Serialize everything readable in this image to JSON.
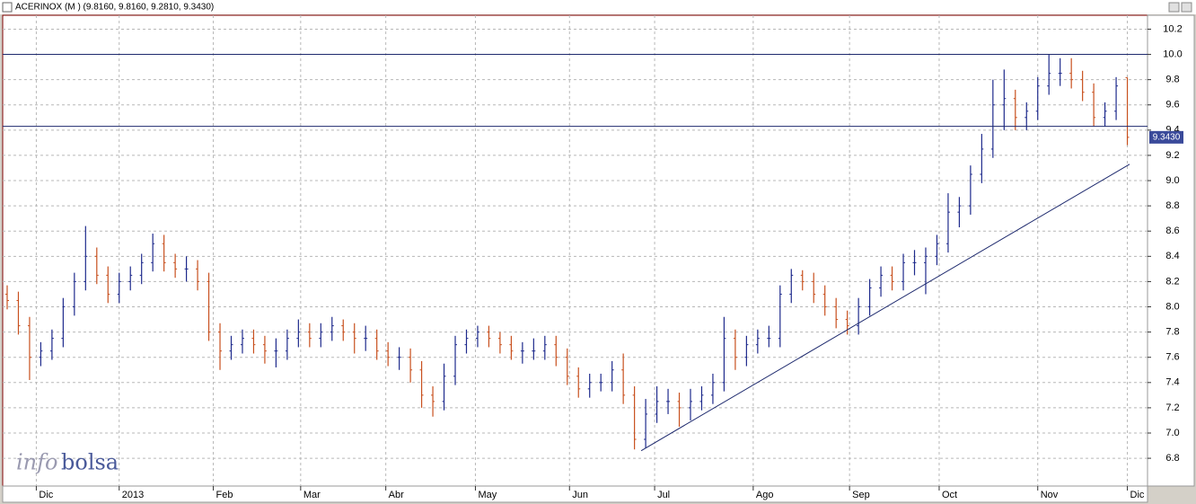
{
  "window": {
    "title": "ACERINOX (M ) (9.8160, 9.8160, 9.2810, 9.3430)"
  },
  "chart_data": {
    "type": "ohlc",
    "open": [
      8.1,
      8.05,
      7.85,
      7.6,
      7.65,
      7.75,
      8.0,
      8.2,
      8.4,
      8.25,
      8.1,
      8.2,
      8.25,
      8.35,
      8.5,
      8.35,
      8.3,
      8.3,
      8.2,
      7.8,
      7.65,
      7.7,
      7.75,
      7.7,
      7.65,
      7.65,
      7.75,
      7.8,
      7.75,
      7.8,
      7.85,
      7.8,
      7.75,
      7.75,
      7.65,
      7.6,
      7.6,
      7.5,
      7.3,
      7.25,
      7.45,
      7.7,
      7.75,
      7.8,
      7.75,
      7.7,
      7.65,
      7.65,
      7.65,
      7.7,
      7.6,
      7.45,
      7.35,
      7.4,
      7.4,
      7.5,
      7.3,
      6.95,
      7.15,
      7.25,
      7.25,
      7.2,
      7.25,
      7.3,
      7.4,
      7.75,
      7.6,
      7.7,
      7.75,
      7.75,
      8.1,
      8.25,
      8.2,
      8.1,
      8.0,
      7.9,
      7.85,
      8.0,
      8.15,
      8.25,
      8.2,
      8.35,
      8.35,
      8.4,
      8.5,
      8.75,
      8.8,
      9.05,
      9.25,
      9.6,
      9.65,
      9.5,
      9.55,
      9.75,
      9.85,
      9.85,
      9.8,
      9.7,
      9.5,
      9.55,
      9.816
    ],
    "high": [
      8.17,
      8.12,
      7.92,
      7.72,
      7.82,
      8.07,
      8.27,
      8.64,
      8.47,
      8.32,
      8.27,
      8.32,
      8.42,
      8.58,
      8.57,
      8.42,
      8.4,
      8.37,
      8.27,
      7.87,
      7.77,
      7.82,
      7.82,
      7.77,
      7.75,
      7.82,
      7.9,
      7.87,
      7.87,
      7.92,
      7.9,
      7.87,
      7.85,
      7.82,
      7.72,
      7.68,
      7.67,
      7.57,
      7.37,
      7.55,
      7.77,
      7.82,
      7.85,
      7.85,
      7.8,
      7.77,
      7.72,
      7.75,
      7.77,
      7.77,
      7.67,
      7.52,
      7.47,
      7.47,
      7.57,
      7.63,
      7.37,
      7.27,
      7.37,
      7.35,
      7.32,
      7.35,
      7.37,
      7.47,
      7.92,
      7.82,
      7.77,
      7.82,
      7.85,
      8.17,
      8.3,
      8.29,
      8.27,
      8.17,
      8.07,
      7.97,
      8.07,
      8.22,
      8.32,
      8.32,
      8.42,
      8.45,
      8.47,
      8.57,
      8.9,
      8.87,
      9.12,
      9.37,
      9.8,
      9.88,
      9.72,
      9.62,
      9.82,
      10.0,
      9.97,
      9.97,
      9.87,
      9.77,
      9.62,
      9.82,
      9.816
    ],
    "low": [
      7.98,
      7.78,
      7.42,
      7.53,
      7.58,
      7.68,
      7.93,
      8.13,
      8.18,
      8.03,
      8.03,
      8.13,
      8.18,
      8.28,
      8.28,
      8.23,
      8.2,
      8.13,
      7.73,
      7.5,
      7.58,
      7.63,
      7.63,
      7.55,
      7.52,
      7.58,
      7.68,
      7.68,
      7.68,
      7.73,
      7.73,
      7.63,
      7.65,
      7.58,
      7.53,
      7.5,
      7.4,
      7.2,
      7.13,
      7.18,
      7.38,
      7.63,
      7.68,
      7.68,
      7.63,
      7.58,
      7.55,
      7.58,
      7.58,
      7.53,
      7.38,
      7.28,
      7.28,
      7.33,
      7.33,
      7.23,
      6.87,
      6.88,
      7.08,
      7.15,
      7.05,
      7.1,
      7.18,
      7.23,
      7.33,
      7.5,
      7.53,
      7.63,
      7.68,
      7.68,
      8.03,
      8.13,
      8.03,
      7.93,
      7.83,
      7.78,
      7.78,
      7.93,
      8.08,
      8.13,
      8.13,
      8.25,
      8.1,
      8.33,
      8.43,
      8.63,
      8.73,
      8.98,
      9.18,
      9.4,
      9.4,
      9.4,
      9.48,
      9.68,
      9.75,
      9.73,
      9.63,
      9.43,
      9.43,
      9.48,
      9.281
    ],
    "close": [
      8.05,
      7.85,
      7.6,
      7.65,
      7.75,
      8.0,
      8.2,
      8.4,
      8.25,
      8.1,
      8.2,
      8.25,
      8.35,
      8.5,
      8.35,
      8.3,
      8.3,
      8.2,
      7.8,
      7.65,
      7.7,
      7.75,
      7.7,
      7.65,
      7.65,
      7.75,
      7.8,
      7.75,
      7.8,
      7.85,
      7.8,
      7.75,
      7.75,
      7.65,
      7.6,
      7.6,
      7.5,
      7.3,
      7.25,
      7.45,
      7.7,
      7.75,
      7.8,
      7.75,
      7.7,
      7.65,
      7.65,
      7.65,
      7.7,
      7.6,
      7.45,
      7.35,
      7.4,
      7.4,
      7.5,
      7.3,
      6.95,
      7.15,
      7.25,
      7.25,
      7.2,
      7.25,
      7.3,
      7.4,
      7.75,
      7.6,
      7.7,
      7.75,
      7.75,
      8.1,
      8.25,
      8.2,
      8.1,
      8.0,
      7.9,
      7.85,
      8.0,
      8.15,
      8.25,
      8.2,
      8.35,
      8.35,
      8.4,
      8.5,
      8.75,
      8.8,
      9.05,
      9.25,
      9.6,
      9.65,
      9.5,
      9.55,
      9.75,
      9.85,
      9.85,
      9.8,
      9.7,
      9.5,
      9.55,
      9.75,
      9.343
    ],
    "up_color": "#1e2a8c",
    "down_color": "#c8501e",
    "xlim": [
      -0.4,
      101.8
    ],
    "ylim": [
      6.58,
      10.31
    ],
    "xticks": [
      {
        "value": 2.6,
        "label": "Dic"
      },
      {
        "value": 10,
        "label": "2013"
      },
      {
        "value": 18.4,
        "label": "Feb"
      },
      {
        "value": 26.2,
        "label": "Mar"
      },
      {
        "value": 33.8,
        "label": "Abr"
      },
      {
        "value": 41.8,
        "label": "May"
      },
      {
        "value": 50.2,
        "label": "Jun"
      },
      {
        "value": 57.8,
        "label": "Jul"
      },
      {
        "value": 66.6,
        "label": "Ago"
      },
      {
        "value": 75.2,
        "label": "Sep"
      },
      {
        "value": 83.2,
        "label": "Oct"
      },
      {
        "value": 92,
        "label": "Nov"
      },
      {
        "value": 100,
        "label": "Dic"
      }
    ],
    "yticks": [
      6.8,
      {
        "value": 7,
        "label": "7.0"
      },
      7.2,
      7.4,
      7.6,
      7.8,
      {
        "value": 8,
        "label": "8.0"
      },
      8.2,
      8.4,
      8.6,
      8.8,
      {
        "value": 9,
        "label": "9.0"
      },
      9.2,
      9.4,
      9.6,
      9.8,
      {
        "value": 10,
        "label": "10.0"
      },
      10.2
    ],
    "grid": true,
    "line_color": "#1e2a6e",
    "hlines": [
      10.0,
      9.43
    ],
    "trendline": {
      "x": [
        56.6,
        100.2
      ],
      "y": [
        6.86,
        9.13
      ]
    },
    "last_price": {
      "value": 9.343,
      "label": "9.3430"
    },
    "watermark": [
      "info",
      "bolsa"
    ]
  }
}
